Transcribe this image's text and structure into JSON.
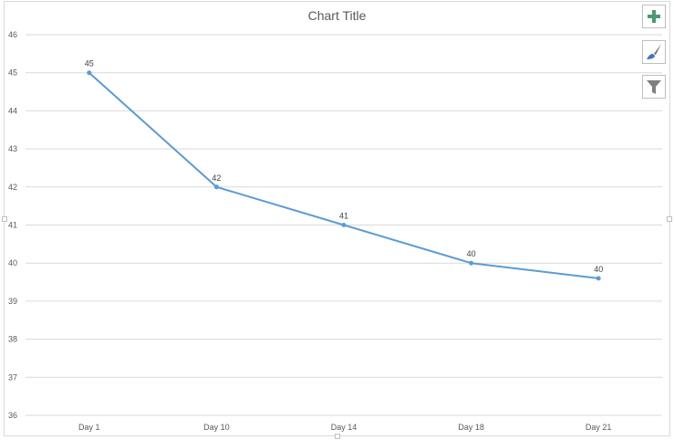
{
  "chart_data": {
    "type": "line",
    "title": "Chart Title",
    "categories": [
      "Day 1",
      "Day 10",
      "Day 14",
      "Day 18",
      "Day 21"
    ],
    "series": [
      {
        "values": [
          45,
          42,
          41,
          40,
          39.6
        ],
        "color": "#5b9bd5"
      }
    ],
    "data_labels": [
      "45",
      "42",
      "41",
      "40",
      "40"
    ],
    "ylim": [
      36,
      46
    ],
    "yticks": [
      "36",
      "37",
      "38",
      "39",
      "40",
      "41",
      "42",
      "43",
      "44",
      "45",
      "46"
    ],
    "grid": true,
    "xlabel": "",
    "ylabel": ""
  },
  "side_buttons": [
    {
      "icon": "plus-icon",
      "color": "#4e9a6e"
    },
    {
      "icon": "paintbrush-icon",
      "color": "#4472c4"
    },
    {
      "icon": "filter-icon",
      "color": "#7f7f7f"
    }
  ]
}
